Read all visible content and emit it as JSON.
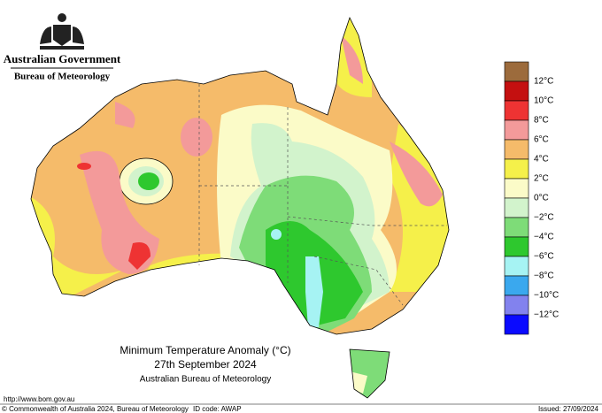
{
  "header": {
    "government": "Australian Government",
    "agency": "Bureau of Meteorology"
  },
  "title": {
    "line1": "Minimum Temperature Anomaly (°C)",
    "line2": "27th September 2024",
    "line3": "Australian Bureau of Meteorology"
  },
  "legend": {
    "colors": [
      "#9c6b3c",
      "#c41010",
      "#ee3333",
      "#f39a9a",
      "#f5bb6a",
      "#f5f04a",
      "#fbfbc8",
      "#d2f3cc",
      "#7edc78",
      "#2ec82e",
      "#a6f3f3",
      "#3aa8ee",
      "#8282ee",
      "#0a0aff"
    ],
    "labels": [
      "12°C",
      "10°C",
      "8°C",
      "6°C",
      "4°C",
      "2°C",
      "0°C",
      "−2°C",
      "−4°C",
      "−6°C",
      "−8°C",
      "−10°C",
      "−12°C"
    ]
  },
  "footer": {
    "url": "http://www.bom.gov.au",
    "copyright": "© Commonwealth of Australia 2024, Bureau of Meteorology",
    "id_code": "ID code: AWAP",
    "issued": "Issued: 27/09/2024"
  }
}
